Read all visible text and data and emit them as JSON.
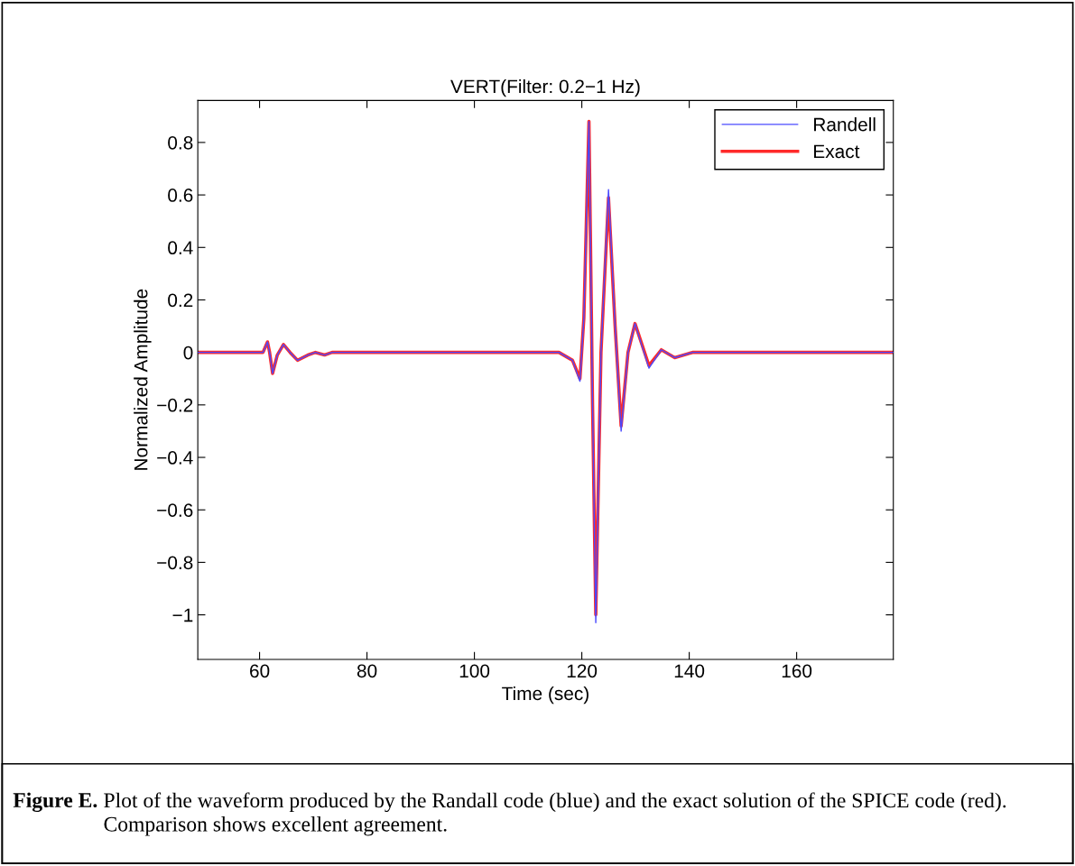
{
  "chart_data": {
    "type": "line",
    "title": "VERT(Filter: 0.2−1 Hz)",
    "xlabel": "Time (sec)",
    "ylabel": "Normalized Amplitude",
    "xlim": [
      48.5,
      178
    ],
    "ylim": [
      -1.17,
      0.96
    ],
    "xticks": [
      60,
      80,
      100,
      120,
      140,
      160
    ],
    "yticks": [
      {
        "value": -1,
        "label": "−1"
      },
      {
        "value": -0.8,
        "label": "−0.8"
      },
      {
        "value": -0.6,
        "label": "−0.6"
      },
      {
        "value": -0.4,
        "label": "−0.4"
      },
      {
        "value": -0.2,
        "label": "−0.2"
      },
      0,
      0.2,
      0.4,
      0.6,
      0.8
    ],
    "grid": false,
    "legend": "top right",
    "marker": "none",
    "line_style": "solid",
    "series": [
      {
        "name": "Randell",
        "color": "#4a4aff",
        "x": [
          48.5,
          60.08,
          60.64,
          61.48,
          61.87,
          62.43,
          63.3,
          64.45,
          65.68,
          67.07,
          69.0,
          70.4,
          72.1,
          73.5,
          115.74,
          118.26,
          119.65,
          120.38,
          121.33,
          122.0,
          122.6,
          123.57,
          124.97,
          126.2,
          127.32,
          128.6,
          129.9,
          132.5,
          134.8,
          137.3,
          140.6,
          178
        ],
        "values": [
          0,
          0,
          0,
          0.04,
          0,
          -0.08,
          -0.01,
          0.03,
          0,
          -0.03,
          -0.01,
          0,
          -0.01,
          0,
          0,
          -0.03,
          -0.11,
          0.13,
          0.88,
          -0.2,
          -1.03,
          0,
          0.62,
          0.1,
          -0.3,
          0,
          0.11,
          -0.06,
          0.01,
          -0.02,
          0,
          0
        ]
      },
      {
        "name": "Exact",
        "color": "#ff2a2a",
        "x": [
          48.5,
          60.08,
          60.64,
          61.48,
          61.87,
          62.43,
          63.3,
          64.45,
          65.68,
          67.07,
          69.0,
          70.4,
          72.1,
          73.5,
          115.74,
          118.26,
          119.65,
          120.38,
          121.33,
          122.0,
          122.6,
          123.57,
          124.97,
          126.2,
          127.32,
          128.6,
          129.9,
          132.5,
          134.8,
          137.3,
          140.6,
          178
        ],
        "values": [
          0,
          0,
          0,
          0.04,
          0,
          -0.08,
          -0.01,
          0.03,
          0,
          -0.03,
          -0.01,
          0,
          -0.01,
          0,
          0,
          -0.03,
          -0.1,
          0.13,
          0.88,
          -0.2,
          -1.0,
          0,
          0.59,
          0.1,
          -0.28,
          0,
          0.11,
          -0.05,
          0.01,
          -0.02,
          0,
          0
        ]
      }
    ],
    "annotations": [
      "Figure E.",
      "Plot of the waveform produced by the Randall code (blue) and the exact solution of the SPICE code (red). Comparison shows excellent agreement."
    ]
  }
}
